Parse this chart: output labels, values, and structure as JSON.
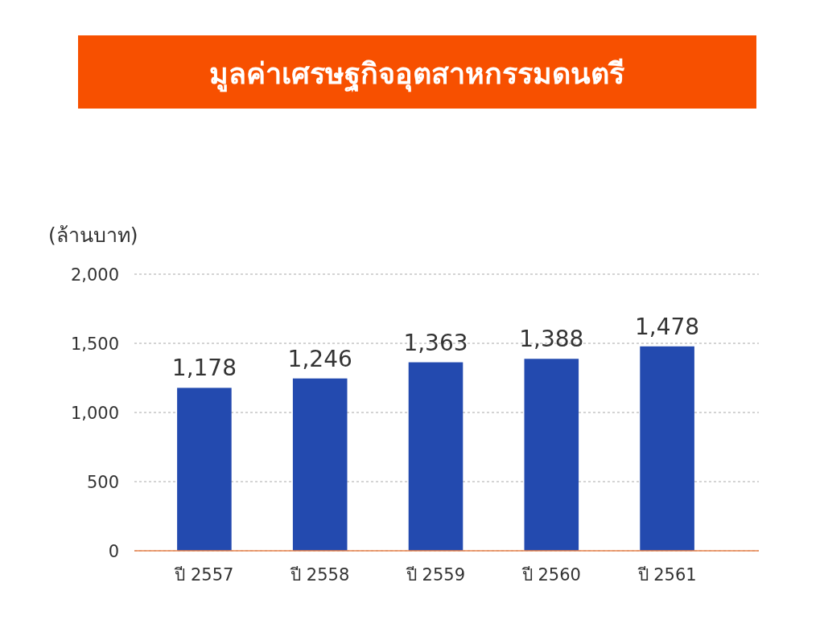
{
  "chart_data": {
    "type": "bar",
    "title": "มูลค่าเศรษฐกิจอุตสาหกรรมดนตรี",
    "ylabel": "(ล้านบาท)",
    "categories": [
      "ปี 2557",
      "ปี 2558",
      "ปี 2559",
      "ปี 2560",
      "ปี 2561"
    ],
    "values": [
      1178,
      1246,
      1363,
      1388,
      1478
    ],
    "color": "#234aaf",
    "value_labels": [
      "1,178",
      "1,246",
      "1,363",
      "1,388",
      "1,478"
    ],
    "ylim": [
      0,
      2000
    ],
    "yticks": [
      0,
      500,
      {
        "value": 1000,
        "label": "1,000"
      },
      {
        "value": 1500,
        "label": "1,500"
      },
      {
        "value": 2000,
        "label": "2,000"
      }
    ],
    "grid": "y"
  }
}
